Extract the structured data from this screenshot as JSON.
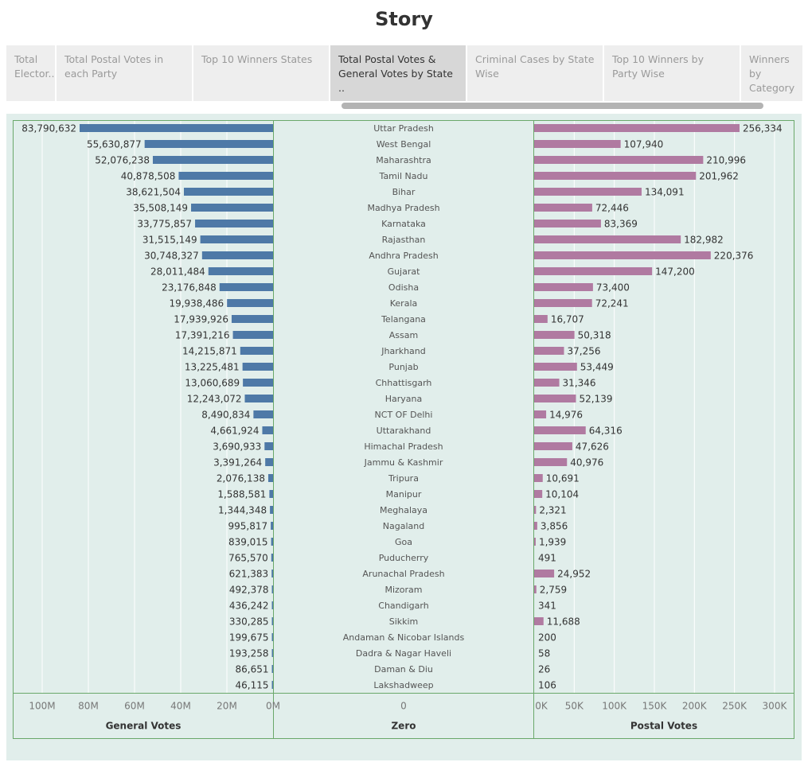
{
  "story": {
    "title": "Story"
  },
  "tabs": [
    {
      "label": "Total Elector..",
      "active": false
    },
    {
      "label": "Total Postal Votes in each Party",
      "active": false
    },
    {
      "label": "Top 10 Winners States",
      "active": false
    },
    {
      "label": "Total Postal Votes & General Votes by State ..",
      "active": true
    },
    {
      "label": "Criminal Cases by State Wise",
      "active": false
    },
    {
      "label": "Top 10 Winners by Party Wise",
      "active": false
    },
    {
      "label": "Winners by Category ..",
      "active": false
    }
  ],
  "colors": {
    "general": "#4e79a7",
    "postal": "#b07aa1",
    "panel": "#e1eeeb",
    "border": "#6aa86a"
  },
  "chart_data": {
    "type": "bar",
    "categories": [
      "Uttar Pradesh",
      "West Bengal",
      "Maharashtra",
      "Tamil Nadu",
      "Bihar",
      "Madhya Pradesh",
      "Karnataka",
      "Rajasthan",
      "Andhra Pradesh",
      "Gujarat",
      "Odisha",
      "Kerala",
      "Telangana",
      "Assam",
      "Jharkhand",
      "Punjab",
      "Chhattisgarh",
      "Haryana",
      "NCT OF Delhi",
      "Uttarakhand",
      "Himachal Pradesh",
      "Jammu & Kashmir",
      "Tripura",
      "Manipur",
      "Meghalaya",
      "Nagaland",
      "Goa",
      "Puducherry",
      "Arunachal Pradesh",
      "Mizoram",
      "Chandigarh",
      "Sikkim",
      "Andaman & Nicobar Islands",
      "Dadra & Nagar Haveli",
      "Daman & Diu",
      "Lakshadweep"
    ],
    "series": [
      {
        "name": "General Votes",
        "values": [
          83790632,
          55630877,
          52076238,
          40878508,
          38621504,
          35508149,
          33775857,
          31515149,
          30748327,
          28011484,
          23176848,
          19938486,
          17939926,
          17391216,
          14215871,
          13225481,
          13060689,
          12243072,
          8490834,
          4661924,
          3690933,
          3391264,
          2076138,
          1588581,
          1344348,
          995817,
          839015,
          765570,
          621383,
          492378,
          436242,
          330285,
          199675,
          193258,
          86651,
          46115
        ],
        "labels": [
          "83,790,632",
          "55,630,877",
          "52,076,238",
          "40,878,508",
          "38,621,504",
          "35,508,149",
          "33,775,857",
          "31,515,149",
          "30,748,327",
          "28,011,484",
          "23,176,848",
          "19,938,486",
          "17,939,926",
          "17,391,216",
          "14,215,871",
          "13,225,481",
          "13,060,689",
          "12,243,072",
          "8,490,834",
          "4,661,924",
          "3,690,933",
          "3,391,264",
          "2,076,138",
          "1,588,581",
          "1,344,348",
          "995,817",
          "839,015",
          "765,570",
          "621,383",
          "492,378",
          "436,242",
          "330,285",
          "199,675",
          "193,258",
          "86,651",
          "46,115"
        ]
      },
      {
        "name": "Postal Votes",
        "values": [
          256334,
          107940,
          210996,
          201962,
          134091,
          72446,
          83369,
          182982,
          220376,
          147200,
          73400,
          72241,
          16707,
          50318,
          37256,
          53449,
          31346,
          52139,
          14976,
          64316,
          47626,
          40976,
          10691,
          10104,
          2321,
          3856,
          1939,
          491,
          24952,
          2759,
          341,
          11688,
          200,
          58,
          26,
          106
        ],
        "labels": [
          "256,334",
          "107,940",
          "210,996",
          "201,962",
          "134,091",
          "72,446",
          "83,369",
          "182,982",
          "220,376",
          "147,200",
          "73,400",
          "72,241",
          "16,707",
          "50,318",
          "37,256",
          "53,449",
          "31,346",
          "52,139",
          "14,976",
          "64,316",
          "47,626",
          "40,976",
          "10,691",
          "10,104",
          "2,321",
          "3,856",
          "1,939",
          "491",
          "24,952",
          "2,759",
          "341",
          "11,688",
          "200",
          "58",
          "26",
          "106"
        ]
      }
    ],
    "axes": {
      "general": {
        "label": "General Votes",
        "ticks": [
          "100M",
          "80M",
          "60M",
          "40M",
          "20M",
          "0M"
        ],
        "tick_values": [
          100000000,
          80000000,
          60000000,
          40000000,
          20000000,
          0
        ],
        "range": [
          0,
          103000000
        ],
        "reversed": true
      },
      "zero": {
        "label": "Zero",
        "ticks": [
          "0"
        ]
      },
      "postal": {
        "label": "Postal Votes",
        "ticks": [
          "0K",
          "50K",
          "100K",
          "150K",
          "200K",
          "250K",
          "300K"
        ],
        "tick_values": [
          0,
          50000,
          100000,
          150000,
          200000,
          250000,
          300000
        ],
        "range": [
          0,
          318000
        ]
      }
    },
    "grid": true
  }
}
